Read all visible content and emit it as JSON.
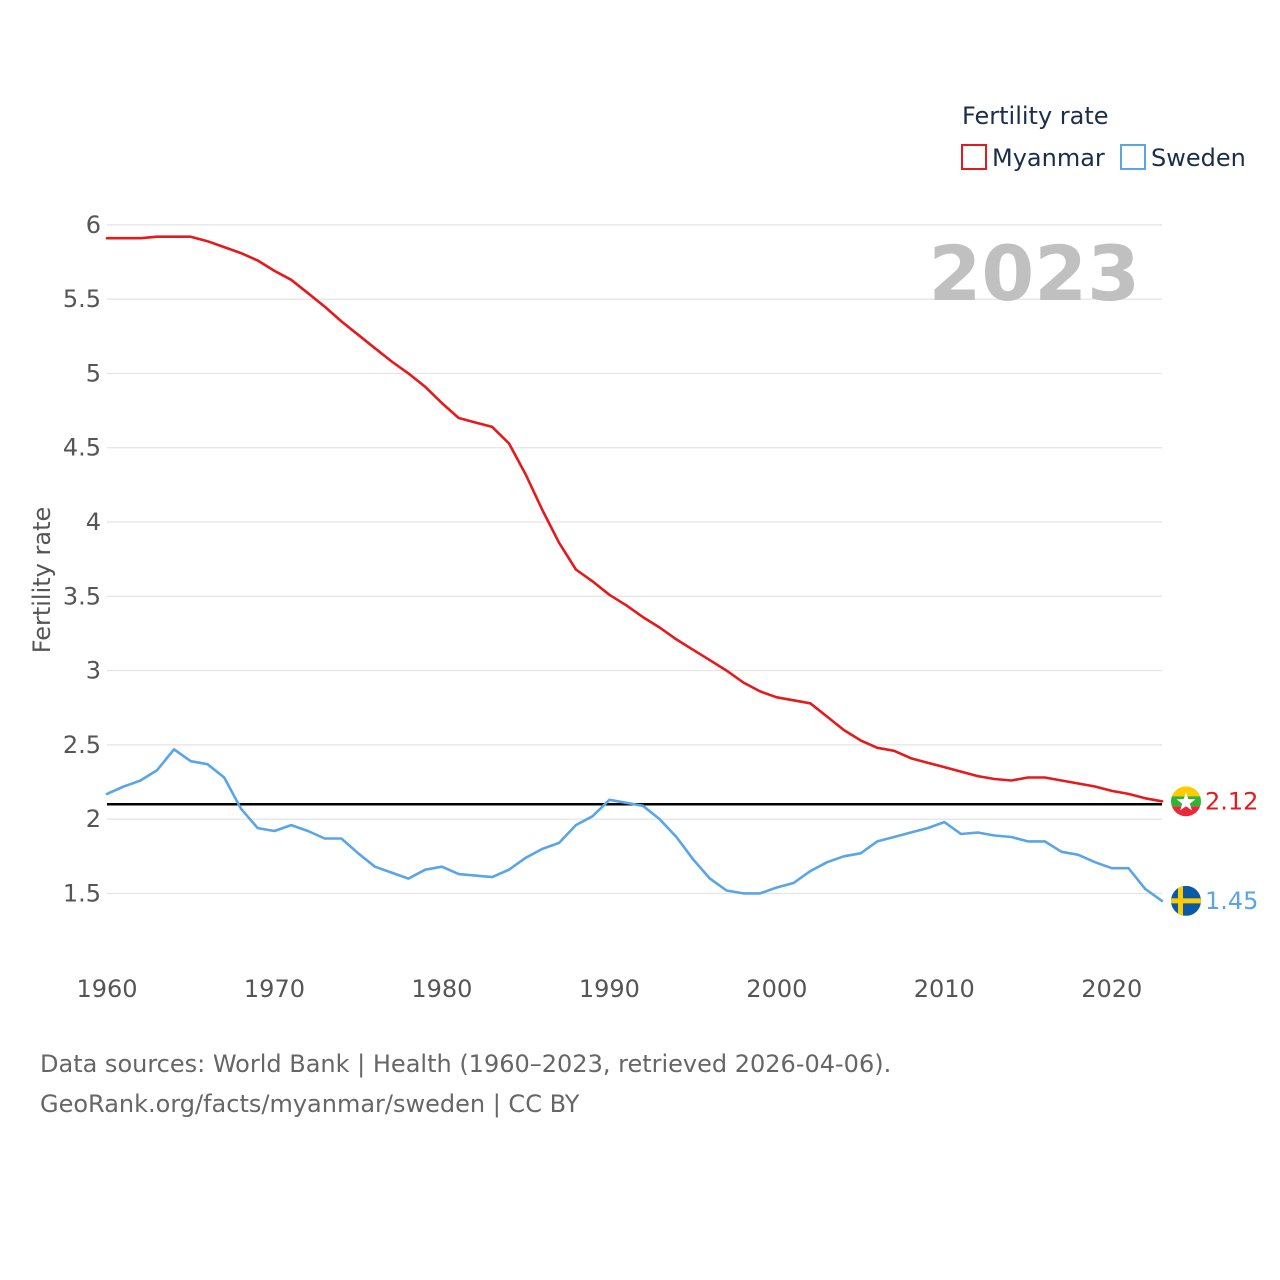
{
  "chart_data": {
    "type": "line",
    "title": "Fertility rate",
    "ylabel": "Fertility rate",
    "xlabel": "",
    "year_label": "2023",
    "xlim": [
      1960,
      2023
    ],
    "ylim": [
      1.2,
      6.1
    ],
    "x_ticks": [
      1960,
      1970,
      1980,
      1990,
      2000,
      2010,
      2020
    ],
    "y_ticks": [
      1.5,
      2,
      2.5,
      3,
      3.5,
      4,
      4.5,
      5,
      5.5,
      6
    ],
    "y_tick_labels": [
      "1.5",
      "2",
      "2.5",
      "3",
      "3.5",
      "4",
      "4.5",
      "5",
      "5.5",
      "6"
    ],
    "reference_line": {
      "y": 2.1,
      "color": "#000000"
    },
    "grid": true,
    "legend_position": "top-right",
    "series": [
      {
        "name": "Myanmar",
        "color": "#e41a1c",
        "end_label": "2.12",
        "flag": "myanmar-flag-icon",
        "x": [
          1960,
          1961,
          1962,
          1963,
          1964,
          1965,
          1966,
          1967,
          1968,
          1969,
          1970,
          1971,
          1972,
          1973,
          1974,
          1975,
          1976,
          1977,
          1978,
          1979,
          1980,
          1981,
          1982,
          1983,
          1984,
          1985,
          1986,
          1987,
          1988,
          1989,
          1990,
          1991,
          1992,
          1993,
          1994,
          1995,
          1996,
          1997,
          1998,
          1999,
          2000,
          2001,
          2002,
          2003,
          2004,
          2005,
          2006,
          2007,
          2008,
          2009,
          2010,
          2011,
          2012,
          2013,
          2014,
          2015,
          2016,
          2017,
          2018,
          2019,
          2020,
          2021,
          2022,
          2023
        ],
        "values": [
          5.91,
          5.91,
          5.91,
          5.92,
          5.92,
          5.92,
          5.89,
          5.85,
          5.81,
          5.76,
          5.69,
          5.63,
          5.54,
          5.45,
          5.35,
          5.26,
          5.17,
          5.08,
          5.0,
          4.91,
          4.8,
          4.7,
          4.67,
          4.64,
          4.53,
          4.32,
          4.08,
          3.86,
          3.68,
          3.6,
          3.51,
          3.44,
          3.36,
          3.29,
          3.21,
          3.14,
          3.07,
          3.0,
          2.92,
          2.86,
          2.82,
          2.8,
          2.78,
          2.69,
          2.6,
          2.53,
          2.48,
          2.46,
          2.41,
          2.38,
          2.35,
          2.32,
          2.29,
          2.27,
          2.26,
          2.28,
          2.28,
          2.26,
          2.24,
          2.22,
          2.19,
          2.17,
          2.14,
          2.12
        ]
      },
      {
        "name": "Sweden",
        "color": "#5aa5e6",
        "end_label": "1.45",
        "flag": "sweden-flag-icon",
        "x": [
          1960,
          1961,
          1962,
          1963,
          1964,
          1965,
          1966,
          1967,
          1968,
          1969,
          1970,
          1971,
          1972,
          1973,
          1974,
          1975,
          1976,
          1977,
          1978,
          1979,
          1980,
          1981,
          1982,
          1983,
          1984,
          1985,
          1986,
          1987,
          1988,
          1989,
          1990,
          1991,
          1992,
          1993,
          1994,
          1995,
          1996,
          1997,
          1998,
          1999,
          2000,
          2001,
          2002,
          2003,
          2004,
          2005,
          2006,
          2007,
          2008,
          2009,
          2010,
          2011,
          2012,
          2013,
          2014,
          2015,
          2016,
          2017,
          2018,
          2019,
          2020,
          2021,
          2022,
          2023
        ],
        "values": [
          2.17,
          2.22,
          2.26,
          2.33,
          2.47,
          2.39,
          2.37,
          2.28,
          2.07,
          1.94,
          1.92,
          1.96,
          1.92,
          1.87,
          1.87,
          1.77,
          1.68,
          1.64,
          1.6,
          1.66,
          1.68,
          1.63,
          1.62,
          1.61,
          1.66,
          1.74,
          1.8,
          1.84,
          1.96,
          2.02,
          2.13,
          2.11,
          2.09,
          2.0,
          1.88,
          1.73,
          1.6,
          1.52,
          1.5,
          1.5,
          1.54,
          1.57,
          1.65,
          1.71,
          1.75,
          1.77,
          1.85,
          1.88,
          1.91,
          1.94,
          1.98,
          1.9,
          1.91,
          1.89,
          1.88,
          1.85,
          1.85,
          1.78,
          1.76,
          1.71,
          1.67,
          1.67,
          1.53,
          1.45
        ]
      }
    ]
  },
  "footer": {
    "sources": "Data sources: World Bank | Health (1960–2023, retrieved 2026-04-06).",
    "credit": "GeoRank.org/facts/myanmar/sweden | CC BY"
  }
}
